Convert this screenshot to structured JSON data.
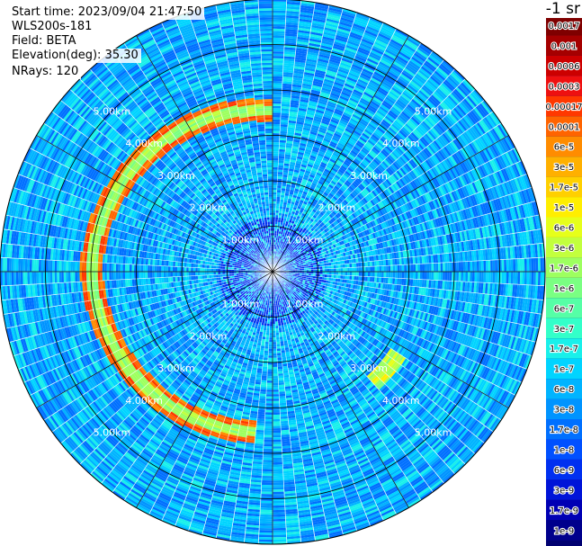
{
  "info": {
    "start_time": "Start time: 2023/09/04 21:47:50",
    "instrument": "WLS200s-181",
    "field": "Field: BETA",
    "elevation": "Elevation(deg): 35.30",
    "nrays": "NRays: 120"
  },
  "colorbar": {
    "unit_label": "-1 sr",
    "labels": [
      "0.0017",
      "0.001",
      "0.0006",
      "0.0003",
      "0.00017",
      "0.0001",
      "6e-5",
      "3e-5",
      "1.7e-5",
      "1e-5",
      "6e-6",
      "3e-6",
      "1.7e-6",
      "1e-6",
      "6e-7",
      "3e-7",
      "1.7e-7",
      "1e-7",
      "6e-8",
      "3e-8",
      "1.7e-8",
      "1e-8",
      "6e-9",
      "3e-9",
      "1.7e-9",
      "1e-9"
    ],
    "colors": [
      "#7f0000",
      "#a50000",
      "#cc0000",
      "#ee1010",
      "#ff3800",
      "#ff6400",
      "#ff8c00",
      "#ffb000",
      "#ffd000",
      "#ffee00",
      "#e6ff1a",
      "#c2ff3d",
      "#9dff5f",
      "#7aff82",
      "#55ffa6",
      "#33ffc9",
      "#19f0ea",
      "#00d4ff",
      "#00b4ff",
      "#0094ff",
      "#0070ff",
      "#0050ff",
      "#0030f0",
      "#0014d8",
      "#0000b4",
      "#00008c"
    ],
    "below_color": "#000070"
  },
  "chart_data": {
    "type": "heatmap",
    "projection": "polar-ppi",
    "n_rays": 120,
    "max_range_km": 6.0,
    "range_rings_km": [
      1,
      2,
      3,
      4,
      5
    ],
    "ring_labels": [
      "1.00km",
      "2.00km",
      "3.00km",
      "4.00km",
      "5.00km"
    ],
    "spoke_step_deg": 30,
    "dominant_value_range": [
      "1e-8",
      "3e-7"
    ],
    "bright_arc": {
      "azimuth_start_deg": 185,
      "azimuth_end_deg": 360,
      "range_km": 4.0,
      "value_range": [
        "1e-6",
        "6e-5"
      ]
    },
    "bright_spot": {
      "azimuth_deg": 130,
      "range_km": 3.3,
      "value_range": [
        "1e-6",
        "1e-5"
      ]
    }
  }
}
